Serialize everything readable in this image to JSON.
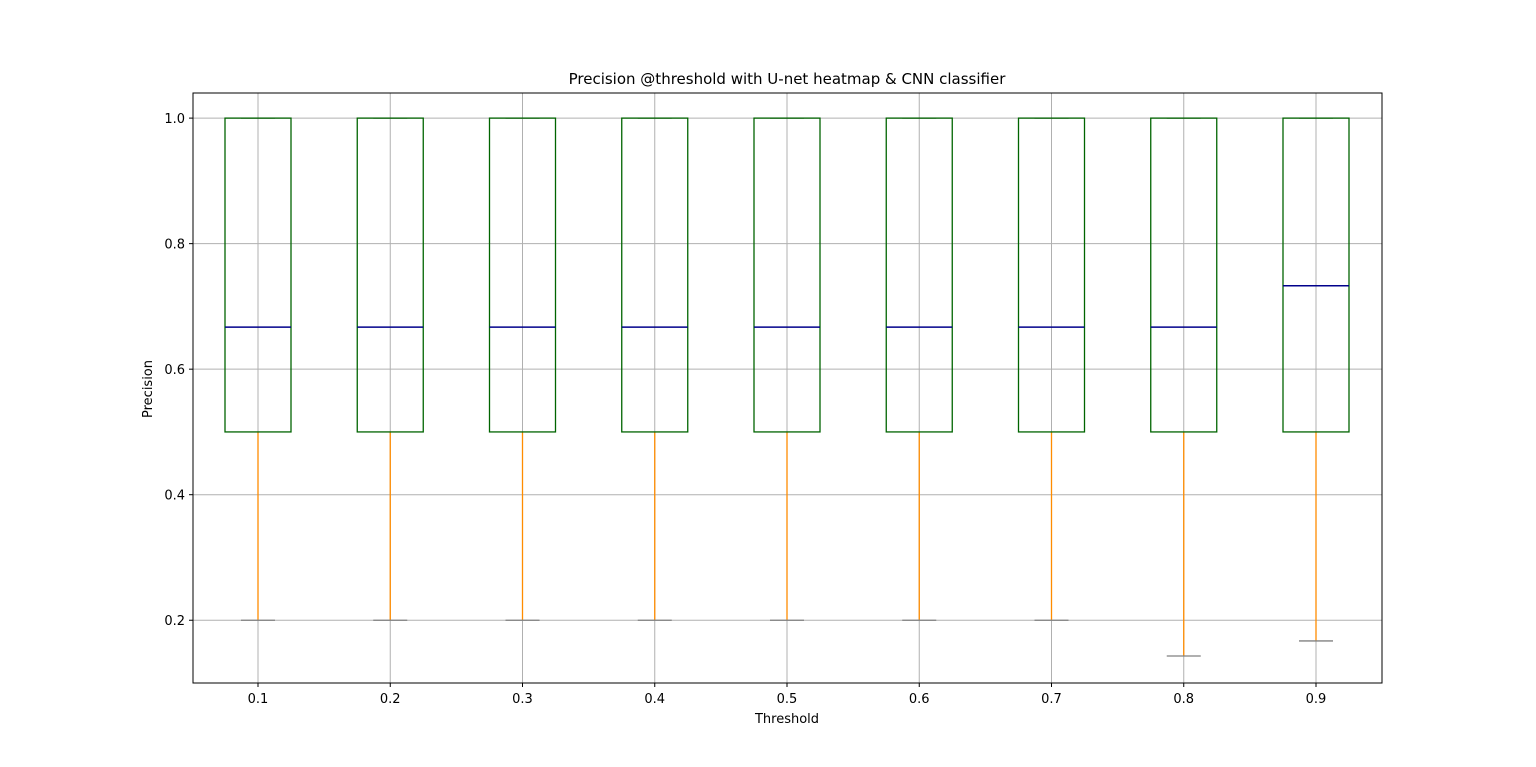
{
  "chart_data": {
    "type": "box",
    "title": "Precision @threshold with U-net heatmap & CNN classifier",
    "xlabel": "Threshold",
    "ylabel": "Precision",
    "categories": [
      "0.1",
      "0.2",
      "0.3",
      "0.4",
      "0.5",
      "0.6",
      "0.7",
      "0.8",
      "0.9"
    ],
    "ylim": [
      0.1,
      1.04
    ],
    "yticks": [
      "0.2",
      "0.4",
      "0.6",
      "0.8",
      "1.0"
    ],
    "grid": true,
    "boxes": [
      {
        "category": "0.1",
        "whisker_low": 0.2,
        "q1": 0.5,
        "median": 0.667,
        "q3": 1.0,
        "whisker_high": 1.0
      },
      {
        "category": "0.2",
        "whisker_low": 0.2,
        "q1": 0.5,
        "median": 0.667,
        "q3": 1.0,
        "whisker_high": 1.0
      },
      {
        "category": "0.3",
        "whisker_low": 0.2,
        "q1": 0.5,
        "median": 0.667,
        "q3": 1.0,
        "whisker_high": 1.0
      },
      {
        "category": "0.4",
        "whisker_low": 0.2,
        "q1": 0.5,
        "median": 0.667,
        "q3": 1.0,
        "whisker_high": 1.0
      },
      {
        "category": "0.5",
        "whisker_low": 0.2,
        "q1": 0.5,
        "median": 0.667,
        "q3": 1.0,
        "whisker_high": 1.0
      },
      {
        "category": "0.6",
        "whisker_low": 0.2,
        "q1": 0.5,
        "median": 0.667,
        "q3": 1.0,
        "whisker_high": 1.0
      },
      {
        "category": "0.7",
        "whisker_low": 0.2,
        "q1": 0.5,
        "median": 0.667,
        "q3": 1.0,
        "whisker_high": 1.0
      },
      {
        "category": "0.8",
        "whisker_low": 0.143,
        "q1": 0.5,
        "median": 0.667,
        "q3": 1.0,
        "whisker_high": 1.0
      },
      {
        "category": "0.9",
        "whisker_low": 0.167,
        "q1": 0.5,
        "median": 0.733,
        "q3": 1.0,
        "whisker_high": 1.0
      }
    ],
    "colors": {
      "box": "#006400",
      "median": "#00008b",
      "whisker": "#ff8c00",
      "cap": "#808080",
      "grid": "#b0b0b0"
    }
  }
}
